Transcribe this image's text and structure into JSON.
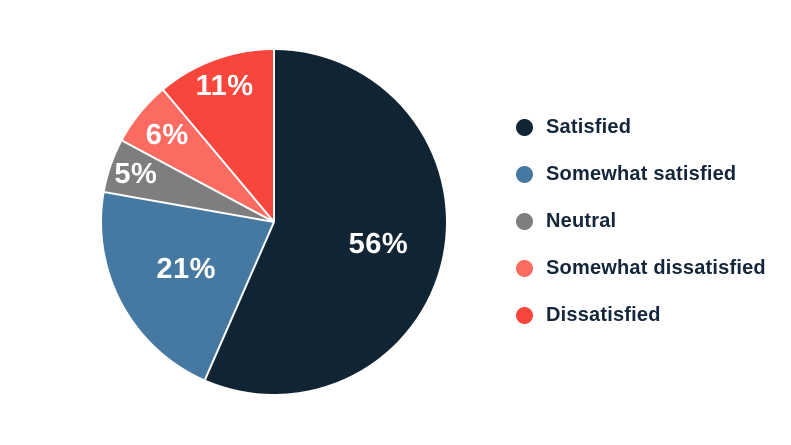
{
  "chart_data": {
    "type": "pie",
    "title": "",
    "categories": [
      "Satisfied",
      "Somewhat satisfied",
      "Neutral",
      "Somewhat dissatisfied",
      "Dissatisfied"
    ],
    "values": [
      56,
      21,
      5,
      6,
      11
    ],
    "slices": [
      {
        "label": "Satisfied",
        "value": 56,
        "display": "56%",
        "color": "#102433"
      },
      {
        "label": "Somewhat satisfied",
        "value": 21,
        "display": "21%",
        "color": "#4579a1"
      },
      {
        "label": "Neutral",
        "value": 5,
        "display": "5%",
        "color": "#7e7e7e"
      },
      {
        "label": "Somewhat dissatisfied",
        "value": 6,
        "display": "6%",
        "color": "#fb6b62"
      },
      {
        "label": "Dissatisfied",
        "value": 11,
        "display": "11%",
        "color": "#f8463c"
      }
    ],
    "start_angle_deg": 0,
    "direction": "clockwise",
    "legend_position": "right",
    "value_label_color": "#ffffff",
    "separator_color": "#ffffff",
    "label_radius_fractions": [
      0.62,
      0.58,
      0.85,
      0.8,
      0.84
    ]
  }
}
